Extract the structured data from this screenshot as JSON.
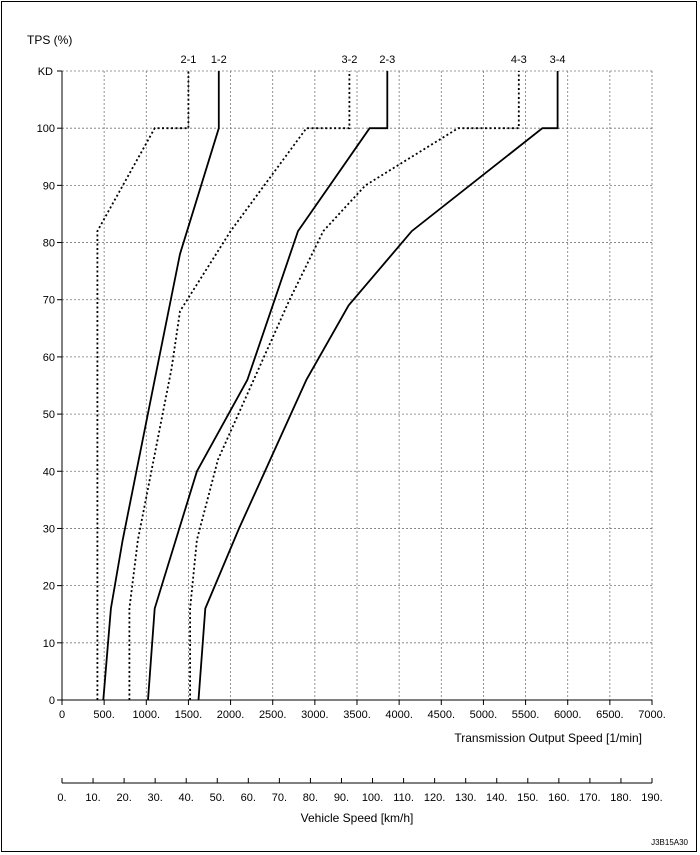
{
  "chart_data": {
    "type": "line",
    "ylabel": "TPS (%)",
    "xlabel": "Transmission Output Speed [1/min]",
    "x2label": "Vehicle Speed [km/h]",
    "figure_code": "J3B15A30",
    "xlim": [
      0,
      7000
    ],
    "ylim": [
      0,
      100
    ],
    "kd_label": "KD",
    "kd_level": 110,
    "x_ticks": [
      0,
      500,
      1000,
      1500,
      2000,
      2500,
      3000,
      3500,
      4000,
      4500,
      5000,
      5500,
      6000,
      6500,
      7000
    ],
    "x_tick_labels": [
      "0",
      "500.",
      "1000.",
      "1500.",
      "2000.",
      "2500.",
      "3000.",
      "3500.",
      "4000.",
      "4500.",
      "5000.",
      "5500.",
      "6000.",
      "6500.",
      "7000."
    ],
    "y_ticks": [
      0,
      10,
      20,
      30,
      40,
      50,
      60,
      70,
      80,
      90,
      100
    ],
    "y_tick_labels": [
      "0",
      "10",
      "20",
      "30",
      "40",
      "50",
      "60",
      "70",
      "80",
      "90",
      "100"
    ],
    "x2lim": [
      0,
      190
    ],
    "x2_ticks": [
      0,
      10,
      20,
      30,
      40,
      50,
      60,
      70,
      80,
      90,
      100,
      110,
      120,
      130,
      140,
      150,
      160,
      170,
      180,
      190
    ],
    "x2_tick_labels": [
      "0.",
      "10.",
      "20.",
      "30.",
      "40.",
      "50.",
      "60.",
      "70.",
      "80.",
      "90.",
      "100.",
      "110.",
      "120.",
      "130.",
      "140.",
      "150.",
      "160.",
      "170.",
      "180.",
      "190."
    ],
    "grid": true,
    "series": [
      {
        "name": "2-1",
        "style": "dotted",
        "label_x": 1500,
        "points": [
          [
            420,
            0
          ],
          [
            420,
            82
          ],
          [
            1100,
            100
          ],
          [
            1500,
            100
          ],
          [
            1500,
            110
          ]
        ]
      },
      {
        "name": "1-2",
        "style": "solid",
        "label_x": 1860,
        "points": [
          [
            490,
            0
          ],
          [
            580,
            16
          ],
          [
            720,
            28
          ],
          [
            1100,
            56
          ],
          [
            1400,
            78
          ],
          [
            1860,
            100
          ],
          [
            1860,
            110
          ]
        ]
      },
      {
        "name": "3-2",
        "style": "dotted",
        "label_x": 3410,
        "points": [
          [
            800,
            0
          ],
          [
            800,
            16
          ],
          [
            900,
            28
          ],
          [
            1300,
            58
          ],
          [
            1400,
            68
          ],
          [
            2000,
            82
          ],
          [
            2900,
            100
          ],
          [
            3410,
            100
          ],
          [
            3410,
            110
          ]
        ]
      },
      {
        "name": "2-3",
        "style": "solid",
        "label_x": 3860,
        "points": [
          [
            1020,
            0
          ],
          [
            1100,
            16
          ],
          [
            1600,
            40
          ],
          [
            2200,
            56
          ],
          [
            2800,
            82
          ],
          [
            3650,
            100
          ],
          [
            3860,
            100
          ],
          [
            3860,
            110
          ]
        ]
      },
      {
        "name": "4-3",
        "style": "dotted",
        "label_x": 5420,
        "points": [
          [
            1520,
            0
          ],
          [
            1520,
            16
          ],
          [
            1600,
            28
          ],
          [
            1850,
            42
          ],
          [
            2700,
            70
          ],
          [
            3100,
            82
          ],
          [
            3600,
            90
          ],
          [
            4700,
            100
          ],
          [
            5420,
            100
          ],
          [
            5420,
            110
          ]
        ]
      },
      {
        "name": "3-4",
        "style": "solid",
        "label_x": 5880,
        "points": [
          [
            1620,
            0
          ],
          [
            1700,
            16
          ],
          [
            2100,
            30
          ],
          [
            2900,
            56
          ],
          [
            3400,
            69
          ],
          [
            4150,
            82
          ],
          [
            5700,
            100
          ],
          [
            5880,
            100
          ],
          [
            5880,
            110
          ]
        ]
      }
    ]
  }
}
